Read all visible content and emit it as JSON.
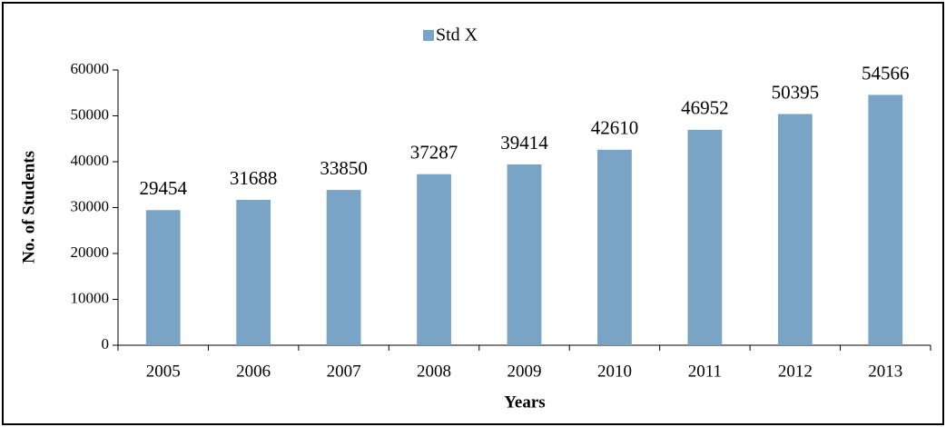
{
  "chart_data": {
    "type": "bar",
    "legend": "Std X",
    "x_label": "Years",
    "y_label": "No. of Students",
    "categories": [
      "2005",
      "2006",
      "2007",
      "2008",
      "2009",
      "2010",
      "2011",
      "2012",
      "2013"
    ],
    "values": [
      29454,
      31688,
      33850,
      37287,
      39414,
      42610,
      46952,
      50395,
      54566
    ],
    "color": "#7aa4c6",
    "ylim": [
      0,
      60000
    ],
    "yticks": [
      0,
      10000,
      20000,
      30000,
      40000,
      50000,
      60000
    ],
    "grid": false
  }
}
